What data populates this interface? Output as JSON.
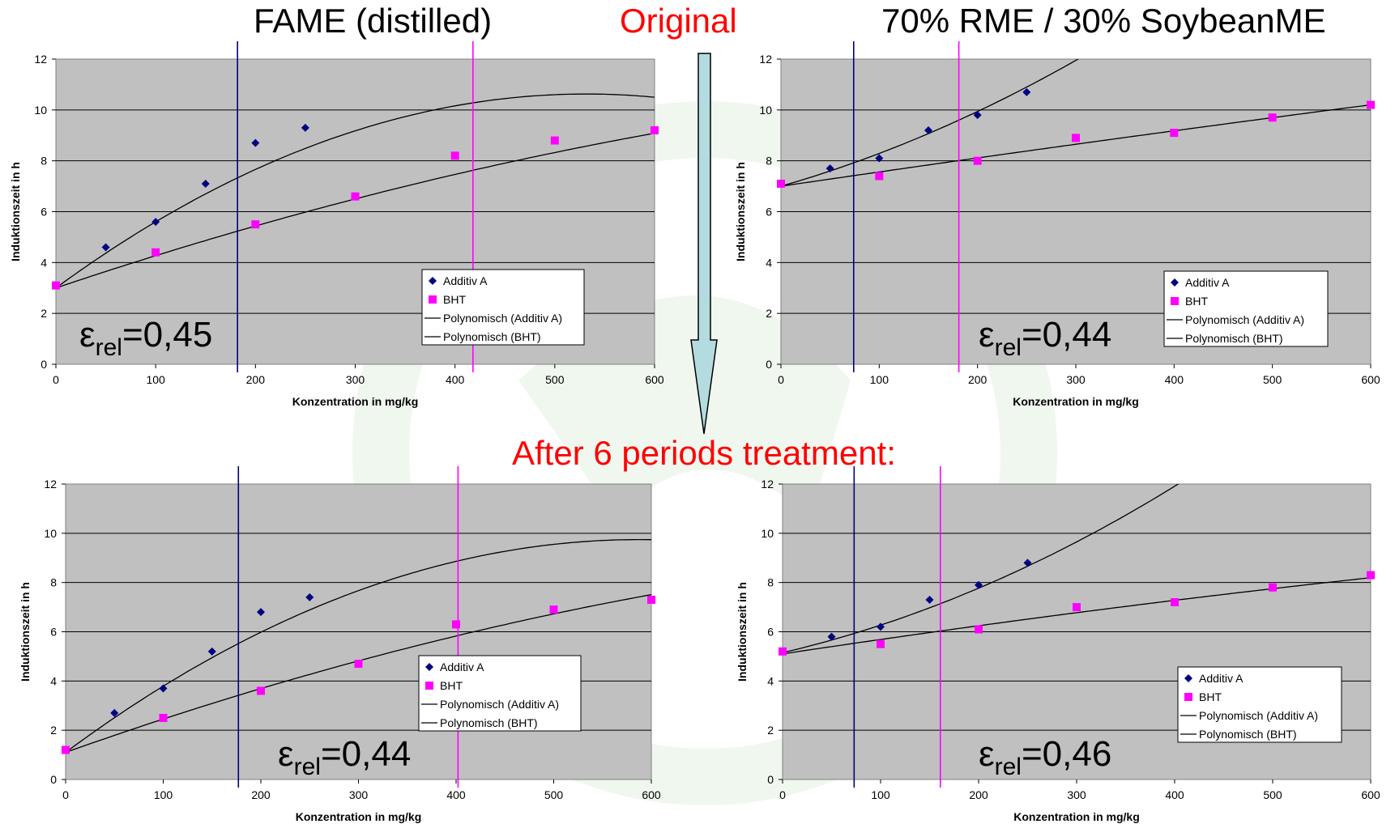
{
  "slide": {
    "title_left": "FAME (distilled)",
    "title_middle": "Original",
    "title_right": "70% RME / 30% SoybeanME",
    "subtitle_middle": "After 6 periods treatment:",
    "colors": {
      "accent_red": "#ff0000",
      "arrow_fill": "#b4dce0",
      "plot_bg": "#c0c0c0",
      "additiv_marker": "#000080",
      "bht_marker": "#ff00ff",
      "watermark": "#f0f7ef"
    }
  },
  "chart_data": [
    {
      "type": "scatter",
      "xlabel": "Konzentration in mg/kg",
      "ylabel": "Induktionszeit in h",
      "xlim": [
        0,
        600
      ],
      "ylim": [
        0,
        12
      ],
      "xticks": [
        "0",
        "100",
        "200",
        "300",
        "400",
        "500",
        "600"
      ],
      "yticks": [
        "0",
        "2",
        "4",
        "6",
        "8",
        "10",
        "12"
      ],
      "grid": true,
      "legend": [
        "Additiv A",
        "BHT",
        "Polynomisch (Additiv A)",
        "Polynomisch (BHT)"
      ],
      "series": [
        {
          "name": "Additiv A",
          "x": [
            0,
            50,
            100,
            150,
            200,
            250
          ],
          "y": [
            3.1,
            4.6,
            5.6,
            7.1,
            8.7,
            9.3
          ]
        },
        {
          "name": "BHT",
          "x": [
            0,
            100,
            200,
            300,
            400,
            500,
            600
          ],
          "y": [
            3.1,
            4.4,
            5.5,
            6.6,
            8.2,
            8.8,
            9.2
          ]
        }
      ],
      "trendlines": [
        {
          "name": "Polynomisch (Additiv A)",
          "a": -2.7e-05,
          "b": 0.0287,
          "c": 3.0
        },
        {
          "name": "Polynomisch (BHT)",
          "a": -5.1e-06,
          "b": 0.0132,
          "c": 3.0
        }
      ],
      "vlines": [
        {
          "x": 182,
          "color": "#000080"
        },
        {
          "x": 418,
          "color": "#ff00ff"
        }
      ],
      "annotation": {
        "base": "ε",
        "sub": "rel",
        "value": "=0,45"
      }
    },
    {
      "type": "scatter",
      "xlabel": "Konzentration in mg/kg",
      "ylabel": "Induktionszeit in h",
      "xlim": [
        0,
        600
      ],
      "ylim": [
        0,
        12
      ],
      "xticks": [
        "0",
        "100",
        "200",
        "300",
        "400",
        "500",
        "600"
      ],
      "yticks": [
        "0",
        "2",
        "4",
        "6",
        "8",
        "10",
        "12"
      ],
      "grid": true,
      "legend": [
        "Additiv A",
        "BHT",
        "Polynomisch (Additiv A)",
        "Polynomisch (BHT)"
      ],
      "series": [
        {
          "name": "Additiv A",
          "x": [
            0,
            50,
            100,
            150,
            200,
            250
          ],
          "y": [
            7.1,
            7.7,
            8.1,
            9.2,
            9.8,
            10.7
          ]
        },
        {
          "name": "BHT",
          "x": [
            0,
            100,
            200,
            300,
            400,
            500,
            600
          ],
          "y": [
            7.1,
            7.4,
            8.0,
            8.9,
            9.1,
            9.7,
            10.2
          ]
        }
      ],
      "trendlines": [
        {
          "name": "Polynomisch (Additiv A)",
          "a": 1.8e-05,
          "b": 0.0111,
          "c": 7.0
        },
        {
          "name": "Polynomisch (BHT)",
          "a": -5.56e-07,
          "b": 0.00567,
          "c": 7.0
        }
      ],
      "vlines": [
        {
          "x": 74,
          "color": "#000080"
        },
        {
          "x": 181,
          "color": "#ff00ff"
        }
      ],
      "annotation": {
        "base": "ε",
        "sub": "rel",
        "value": "=0,44"
      }
    },
    {
      "type": "scatter",
      "xlabel": "Konzentration in mg/kg",
      "ylabel": "Induktionszeit in h",
      "xlim": [
        0,
        600
      ],
      "ylim": [
        0,
        12
      ],
      "xticks": [
        "0",
        "100",
        "200",
        "300",
        "400",
        "500",
        "600"
      ],
      "yticks": [
        "0",
        "2",
        "4",
        "6",
        "8",
        "10",
        "12"
      ],
      "grid": true,
      "legend": [
        "Additiv A",
        "BHT",
        "Polynomisch (Additiv A)",
        "Polynomisch (BHT)"
      ],
      "series": [
        {
          "name": "Additiv A",
          "x": [
            0,
            50,
            100,
            150,
            200,
            250
          ],
          "y": [
            1.2,
            2.7,
            3.7,
            5.2,
            6.8,
            7.4
          ]
        },
        {
          "name": "BHT",
          "x": [
            0,
            100,
            200,
            300,
            400,
            500,
            600
          ],
          "y": [
            1.2,
            2.5,
            3.6,
            4.7,
            6.3,
            6.9,
            7.3
          ]
        }
      ],
      "trendlines": [
        {
          "name": "Polynomisch (Additiv A)",
          "a": -2.5e-05,
          "b": 0.0294,
          "c": 1.1
        },
        {
          "name": "Polynomisch (BHT)",
          "a": -5.7e-06,
          "b": 0.0141,
          "c": 1.1
        }
      ],
      "vlines": [
        {
          "x": 177,
          "color": "#000080"
        },
        {
          "x": 402,
          "color": "#ff00ff"
        }
      ],
      "annotation": {
        "base": "ε",
        "sub": "rel",
        "value": "=0,44"
      }
    },
    {
      "type": "scatter",
      "xlabel": "Konzentration in mg/kg",
      "ylabel": "Induktionszeit in h",
      "xlim": [
        0,
        600
      ],
      "ylim": [
        0,
        12
      ],
      "xticks": [
        "0",
        "100",
        "200",
        "300",
        "400",
        "500",
        "600"
      ],
      "yticks": [
        "0",
        "2",
        "4",
        "6",
        "8",
        "10",
        "12"
      ],
      "grid": true,
      "legend": [
        "Additiv A",
        "BHT",
        "Polynomisch (Additiv A)",
        "Polynomisch (BHT)"
      ],
      "series": [
        {
          "name": "Additiv A",
          "x": [
            0,
            50,
            100,
            150,
            200,
            250
          ],
          "y": [
            5.2,
            5.8,
            6.2,
            7.3,
            7.9,
            8.8
          ]
        },
        {
          "name": "BHT",
          "x": [
            0,
            100,
            200,
            300,
            400,
            500,
            600
          ],
          "y": [
            5.2,
            5.5,
            6.1,
            7.0,
            7.2,
            7.8,
            8.3
          ]
        }
      ],
      "trendlines": [
        {
          "name": "Polynomisch (Additiv A)",
          "a": 1.9e-05,
          "b": 0.0093,
          "c": 5.15
        },
        {
          "name": "Polynomisch (BHT)",
          "a": -1.4e-06,
          "b": 0.006,
          "c": 5.1
        }
      ],
      "vlines": [
        {
          "x": 73,
          "color": "#000080"
        },
        {
          "x": 161,
          "color": "#ff00ff"
        }
      ],
      "annotation": {
        "base": "ε",
        "sub": "rel",
        "value": "=0,46"
      }
    }
  ]
}
